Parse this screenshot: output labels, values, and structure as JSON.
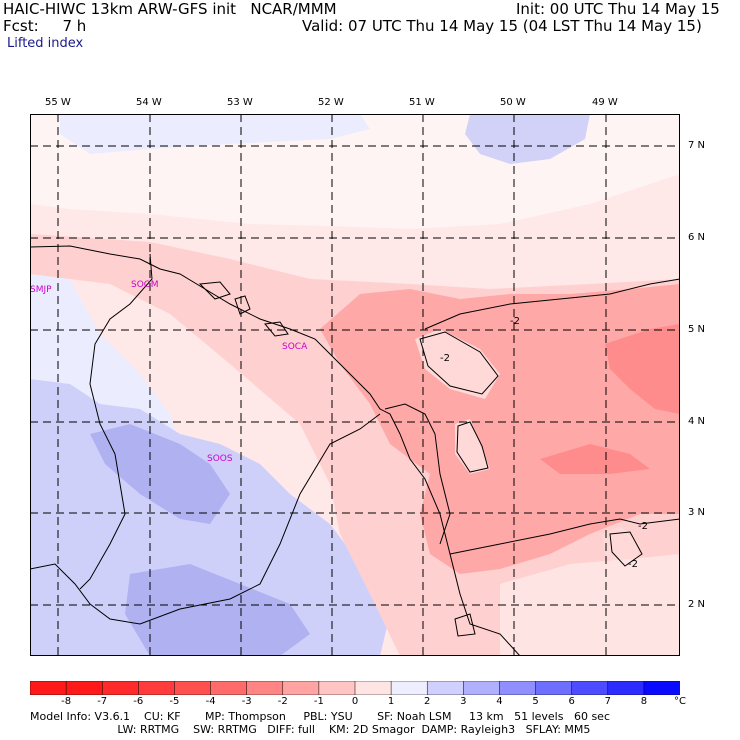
{
  "header": {
    "model": "HAIC-HIWC 13km ARW-GFS init   NCAR/MMM",
    "init": "Init: 00 UTC Thu 14 May 15",
    "fcst": "Fcst:     7 h",
    "valid": "Valid: 07 UTC Thu 14 May 15 (04 LST Thu 14 May 15)",
    "field": "Lifted index"
  },
  "map": {
    "lon_labels": [
      "55 W",
      "54 W",
      "53 W",
      "52 W",
      "51 W",
      "50 W",
      "49 W"
    ],
    "lat_labels": [
      "7 N",
      "6 N",
      "5 N",
      "4 N",
      "3 N",
      "2 N"
    ],
    "stations": [
      "SMJP",
      "SOGM",
      "SOCA",
      "SOOS"
    ],
    "contour_labels": [
      "-2",
      "-2",
      "-2",
      "-2"
    ]
  },
  "colorbar": {
    "labels": [
      "-8",
      "-7",
      "-6",
      "-5",
      "-4",
      "-3",
      "-2",
      "-1",
      "0",
      "1",
      "2",
      "3",
      "4",
      "5",
      "6",
      "7",
      "8"
    ],
    "unit": "°C",
    "colors": [
      "#ff1a1a",
      "#ff2a2a",
      "#ff3c3c",
      "#ff5050",
      "#ff6a6a",
      "#ff8585",
      "#ffa3a3",
      "#ffc4c4",
      "#ffe4e4",
      "#eeeeff",
      "#d0d0ff",
      "#b0b0ff",
      "#8f8fff",
      "#6e6eff",
      "#4d4dff",
      "#2c2cff",
      "#0a0aff"
    ]
  },
  "footer": {
    "line1": "Model Info: V3.6.1    CU: KF       MP: Thompson     PBL: YSU       SF: Noah LSM     13 km   51 levels   60 sec",
    "line2": "                         LW: RRTMG    SW: RRTMG   DIFF: full    KM: 2D Smagor  DAMP: Rayleigh3   SFLAY: MM5"
  }
}
